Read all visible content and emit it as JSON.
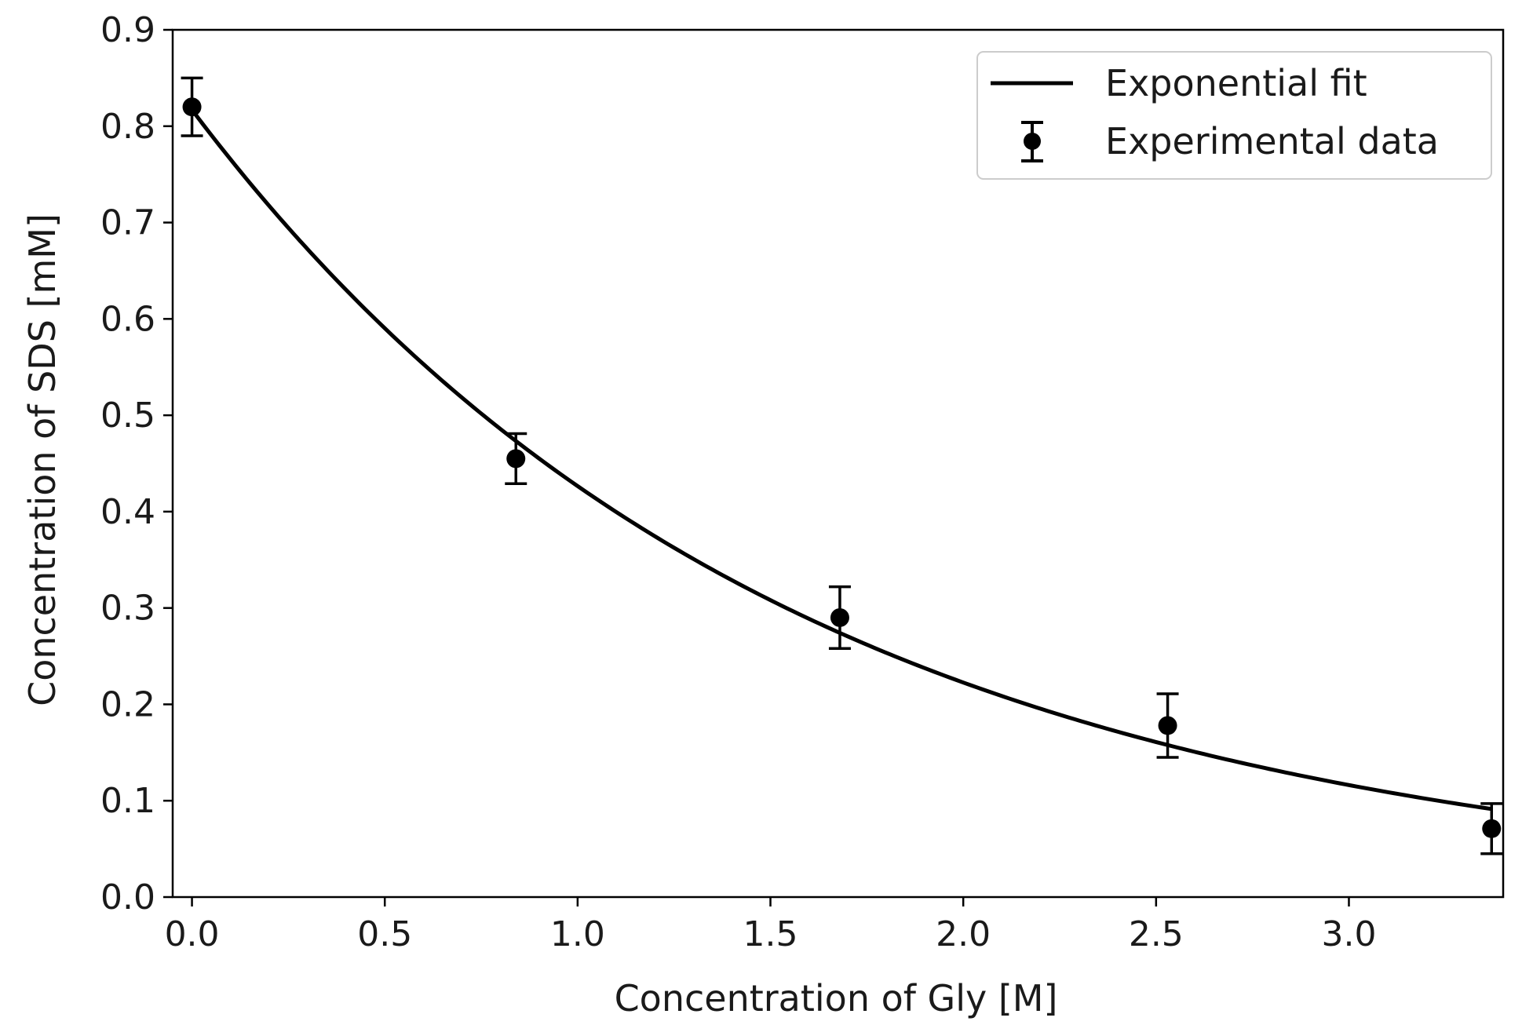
{
  "chart_data": {
    "type": "scatter",
    "title": "",
    "xlabel": "Concentration of Gly [M]",
    "ylabel": "Concentration of SDS [mM]",
    "xlim": [
      -0.05,
      3.4
    ],
    "ylim": [
      0.0,
      0.9
    ],
    "x_ticks": [
      "0.0",
      "0.5",
      "1.0",
      "1.5",
      "2.0",
      "2.5",
      "3.0"
    ],
    "y_ticks": [
      "0.0",
      "0.1",
      "0.2",
      "0.3",
      "0.4",
      "0.5",
      "0.6",
      "0.7",
      "0.8",
      "0.9"
    ],
    "grid": false,
    "legend_position": "top-right",
    "series": [
      {
        "name": "Experimental data",
        "kind": "errorbar-points",
        "x": [
          0.0,
          0.84,
          1.68,
          2.53,
          3.37
        ],
        "y": [
          0.82,
          0.455,
          0.29,
          0.178,
          0.071
        ],
        "yerr": [
          0.03,
          0.026,
          0.032,
          0.033,
          0.026
        ]
      },
      {
        "name": "Exponential fit",
        "kind": "line",
        "function": "a*exp(-b*x)",
        "params": {
          "a": 0.817,
          "b": 0.65
        },
        "x_range": [
          0.0,
          3.37
        ]
      }
    ],
    "color": "#000000"
  }
}
